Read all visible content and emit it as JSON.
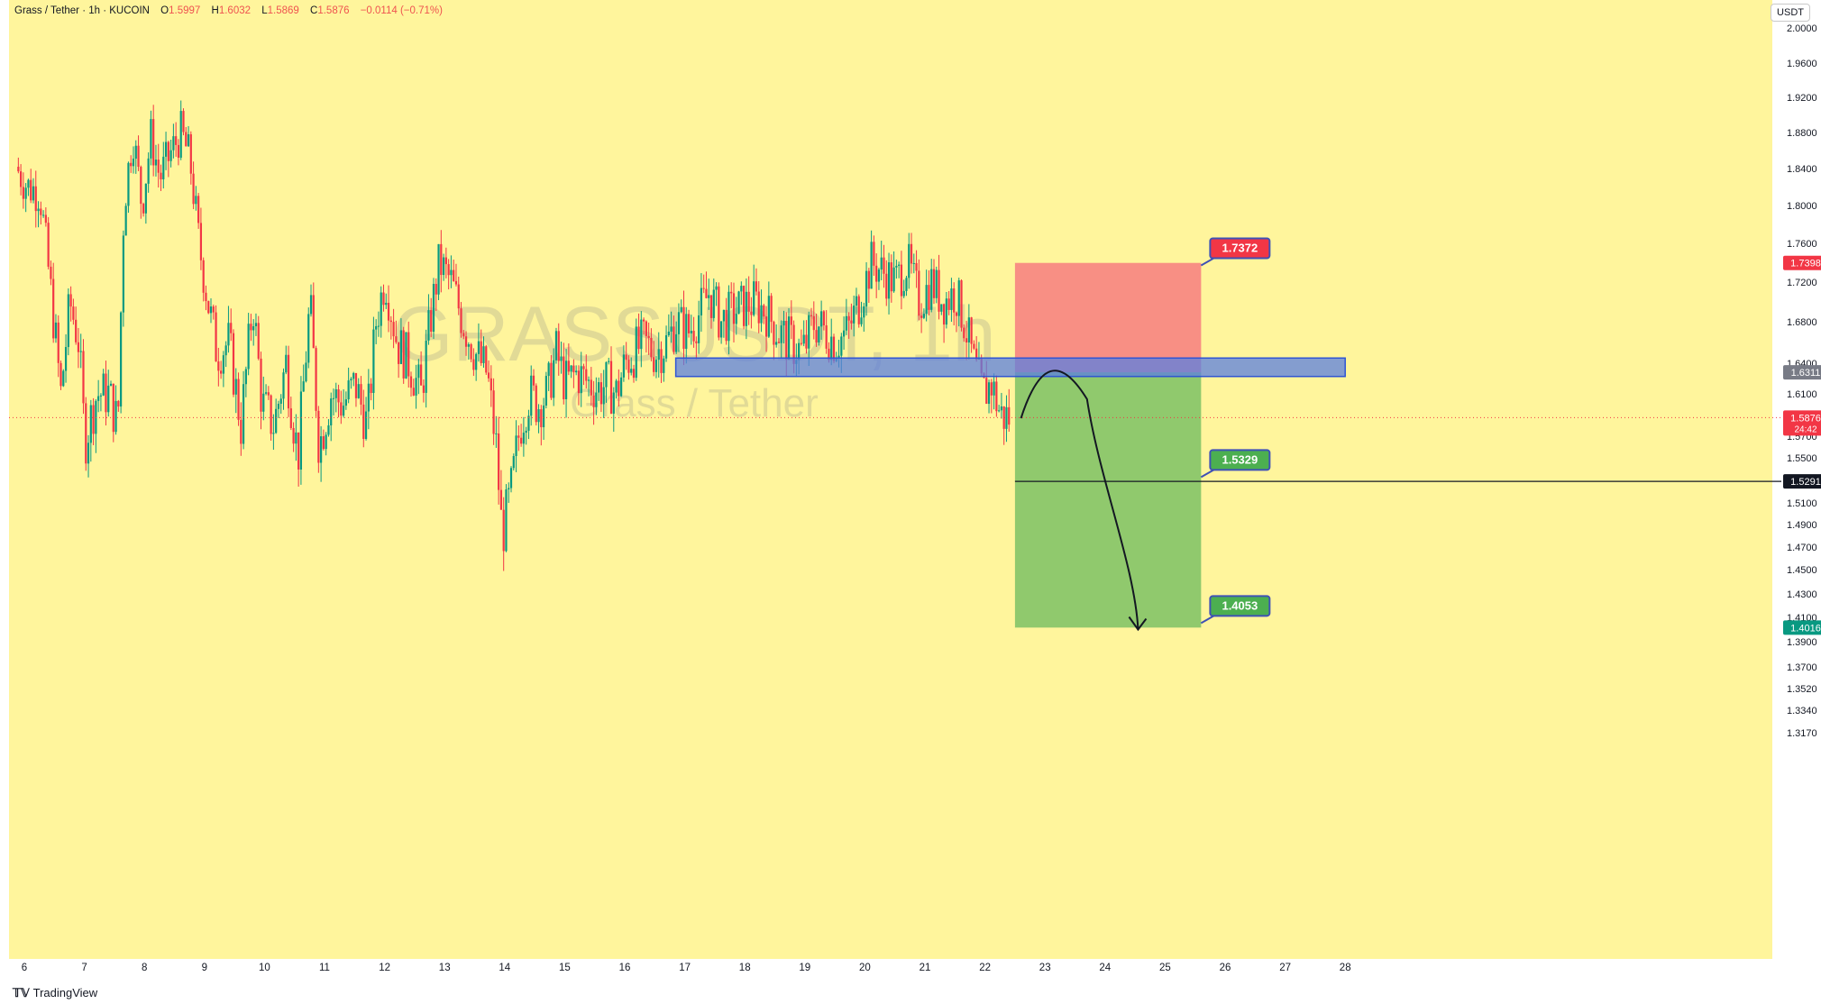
{
  "header": {
    "symbol": "Grass / Tether · 1h · KUCOIN",
    "o_label": "O",
    "o_value": "1.5997",
    "h_label": "H",
    "h_value": "1.6032",
    "l_label": "L",
    "l_value": "1.5869",
    "c_label": "C",
    "c_value": "1.5876",
    "change": "−0.0114 (−0.71%)"
  },
  "currency_button": "USDT",
  "watermark": {
    "ticker": "GRASSUSDT, 1h",
    "name": "Grass / Tether"
  },
  "footer": {
    "brand": "TradingView"
  },
  "colors": {
    "background": "#fff59c",
    "up": "#089981",
    "down": "#f23645",
    "zone": "#5b7fe0",
    "stop": "#f77c80",
    "target": "#4caf50"
  },
  "chart_data": {
    "type": "candlestick",
    "title": "GRASSUSDT, 1h",
    "exchange": "KUCOIN",
    "y_ticks": [
      "2.0000",
      "1.9600",
      "1.9200",
      "1.8800",
      "1.8400",
      "1.8000",
      "1.7600",
      "1.7200",
      "1.6800",
      "1.6400",
      "1.6100",
      "1.5700",
      "1.5500",
      "1.5100",
      "1.4900",
      "1.4700",
      "1.4500",
      "1.4300",
      "1.4100",
      "1.3900",
      "1.3700",
      "1.3520",
      "1.3340",
      "1.3170"
    ],
    "x_ticks": [
      "6",
      "7",
      "8",
      "9",
      "10",
      "11",
      "12",
      "13",
      "14",
      "15",
      "16",
      "17",
      "18",
      "19",
      "20",
      "21",
      "22",
      "23",
      "24",
      "25",
      "26",
      "27",
      "28"
    ],
    "ylim": [
      1.317,
      2.0
    ],
    "price_labels": [
      {
        "text": "1.7398",
        "value": 1.7398,
        "color": "#f23645"
      },
      {
        "text": "1.6311",
        "value": 1.6311,
        "color": "#787b86"
      },
      {
        "text": "1.5876",
        "value": 1.5876,
        "color": "#f23645",
        "timer": "24:42"
      },
      {
        "text": "1.5291",
        "value": 1.5291,
        "color": "#131722"
      },
      {
        "text": "1.4016",
        "value": 1.4016,
        "color": "#089981"
      }
    ],
    "callouts": [
      {
        "text": "1.7372",
        "value": 1.7372,
        "color": "#f23645"
      },
      {
        "text": "1.5329",
        "value": 1.5329,
        "color": "#4caf50"
      },
      {
        "text": "1.4053",
        "value": 1.4053,
        "color": "#4caf50"
      }
    ],
    "zone": {
      "top": 1.645,
      "bottom": 1.627
    },
    "short_position": {
      "entry": 1.6311,
      "stop": 1.7398,
      "target": 1.4016,
      "x_start_day": 22.5,
      "x_end_day": 25.6
    },
    "horizontal_line": 1.5291,
    "last_price": 1.5876,
    "path": [
      {
        "day": 22.6,
        "price": 1.587
      },
      {
        "day": 23.1,
        "price": 1.632
      },
      {
        "day": 23.7,
        "price": 1.605
      },
      {
        "day": 24.2,
        "price": 1.5
      },
      {
        "day": 24.55,
        "price": 1.4
      }
    ],
    "price_path": [
      {
        "day": 5.9,
        "price": 1.842
      },
      {
        "day": 6.1,
        "price": 1.82
      },
      {
        "day": 6.3,
        "price": 1.815
      },
      {
        "day": 6.5,
        "price": 1.7
      },
      {
        "day": 6.65,
        "price": 1.61
      },
      {
        "day": 6.8,
        "price": 1.7
      },
      {
        "day": 6.95,
        "price": 1.66
      },
      {
        "day": 7.05,
        "price": 1.565
      },
      {
        "day": 7.25,
        "price": 1.61
      },
      {
        "day": 7.45,
        "price": 1.61
      },
      {
        "day": 7.6,
        "price": 1.58
      },
      {
        "day": 7.7,
        "price": 1.8
      },
      {
        "day": 7.85,
        "price": 1.88
      },
      {
        "day": 8.0,
        "price": 1.8
      },
      {
        "day": 8.15,
        "price": 1.875
      },
      {
        "day": 8.3,
        "price": 1.83
      },
      {
        "day": 8.5,
        "price": 1.86
      },
      {
        "day": 8.65,
        "price": 1.88
      },
      {
        "day": 8.8,
        "price": 1.85
      },
      {
        "day": 8.95,
        "price": 1.76
      },
      {
        "day": 9.1,
        "price": 1.7
      },
      {
        "day": 9.25,
        "price": 1.65
      },
      {
        "day": 9.45,
        "price": 1.66
      },
      {
        "day": 9.65,
        "price": 1.58
      },
      {
        "day": 9.85,
        "price": 1.7
      },
      {
        "day": 10.0,
        "price": 1.6
      },
      {
        "day": 10.2,
        "price": 1.58
      },
      {
        "day": 10.4,
        "price": 1.64
      },
      {
        "day": 10.6,
        "price": 1.55
      },
      {
        "day": 10.8,
        "price": 1.7
      },
      {
        "day": 10.95,
        "price": 1.56
      },
      {
        "day": 11.15,
        "price": 1.61
      },
      {
        "day": 11.35,
        "price": 1.6
      },
      {
        "day": 11.55,
        "price": 1.62
      },
      {
        "day": 11.75,
        "price": 1.58
      },
      {
        "day": 11.9,
        "price": 1.68
      },
      {
        "day": 12.05,
        "price": 1.725
      },
      {
        "day": 12.25,
        "price": 1.66
      },
      {
        "day": 12.45,
        "price": 1.64
      },
      {
        "day": 12.65,
        "price": 1.61
      },
      {
        "day": 12.8,
        "price": 1.68
      },
      {
        "day": 12.95,
        "price": 1.74
      },
      {
        "day": 13.15,
        "price": 1.72
      },
      {
        "day": 13.35,
        "price": 1.68
      },
      {
        "day": 13.55,
        "price": 1.65
      },
      {
        "day": 13.75,
        "price": 1.63
      },
      {
        "day": 13.9,
        "price": 1.56
      },
      {
        "day": 14.0,
        "price": 1.48
      },
      {
        "day": 14.15,
        "price": 1.52
      },
      {
        "day": 14.3,
        "price": 1.58
      },
      {
        "day": 14.45,
        "price": 1.61
      },
      {
        "day": 14.6,
        "price": 1.6
      },
      {
        "day": 14.75,
        "price": 1.61
      },
      {
        "day": 14.9,
        "price": 1.65
      },
      {
        "day": 15.05,
        "price": 1.62
      },
      {
        "day": 15.25,
        "price": 1.63
      },
      {
        "day": 15.45,
        "price": 1.62
      },
      {
        "day": 15.6,
        "price": 1.615
      },
      {
        "day": 15.75,
        "price": 1.62
      },
      {
        "day": 15.9,
        "price": 1.61
      },
      {
        "day": 16.05,
        "price": 1.64
      },
      {
        "day": 16.2,
        "price": 1.65
      },
      {
        "day": 16.35,
        "price": 1.66
      },
      {
        "day": 16.55,
        "price": 1.65
      },
      {
        "day": 16.75,
        "price": 1.66
      },
      {
        "day": 16.9,
        "price": 1.68
      },
      {
        "day": 17.1,
        "price": 1.67
      },
      {
        "day": 17.3,
        "price": 1.69
      },
      {
        "day": 17.45,
        "price": 1.71
      },
      {
        "day": 17.65,
        "price": 1.68
      },
      {
        "day": 17.85,
        "price": 1.69
      },
      {
        "day": 18.0,
        "price": 1.695
      },
      {
        "day": 18.2,
        "price": 1.7
      },
      {
        "day": 18.4,
        "price": 1.69
      },
      {
        "day": 18.6,
        "price": 1.67
      },
      {
        "day": 18.8,
        "price": 1.66
      },
      {
        "day": 19.0,
        "price": 1.65
      },
      {
        "day": 19.2,
        "price": 1.68
      },
      {
        "day": 19.4,
        "price": 1.67
      },
      {
        "day": 19.55,
        "price": 1.66
      },
      {
        "day": 19.75,
        "price": 1.67
      },
      {
        "day": 19.95,
        "price": 1.7
      },
      {
        "day": 20.15,
        "price": 1.74
      },
      {
        "day": 20.35,
        "price": 1.73
      },
      {
        "day": 20.55,
        "price": 1.72
      },
      {
        "day": 20.75,
        "price": 1.74
      },
      {
        "day": 20.95,
        "price": 1.7
      },
      {
        "day": 21.15,
        "price": 1.72
      },
      {
        "day": 21.35,
        "price": 1.7
      },
      {
        "day": 21.55,
        "price": 1.71
      },
      {
        "day": 21.7,
        "price": 1.68
      },
      {
        "day": 21.85,
        "price": 1.64
      },
      {
        "day": 22.0,
        "price": 1.61
      },
      {
        "day": 22.15,
        "price": 1.62
      },
      {
        "day": 22.3,
        "price": 1.59
      },
      {
        "day": 22.4,
        "price": 1.588
      }
    ]
  }
}
